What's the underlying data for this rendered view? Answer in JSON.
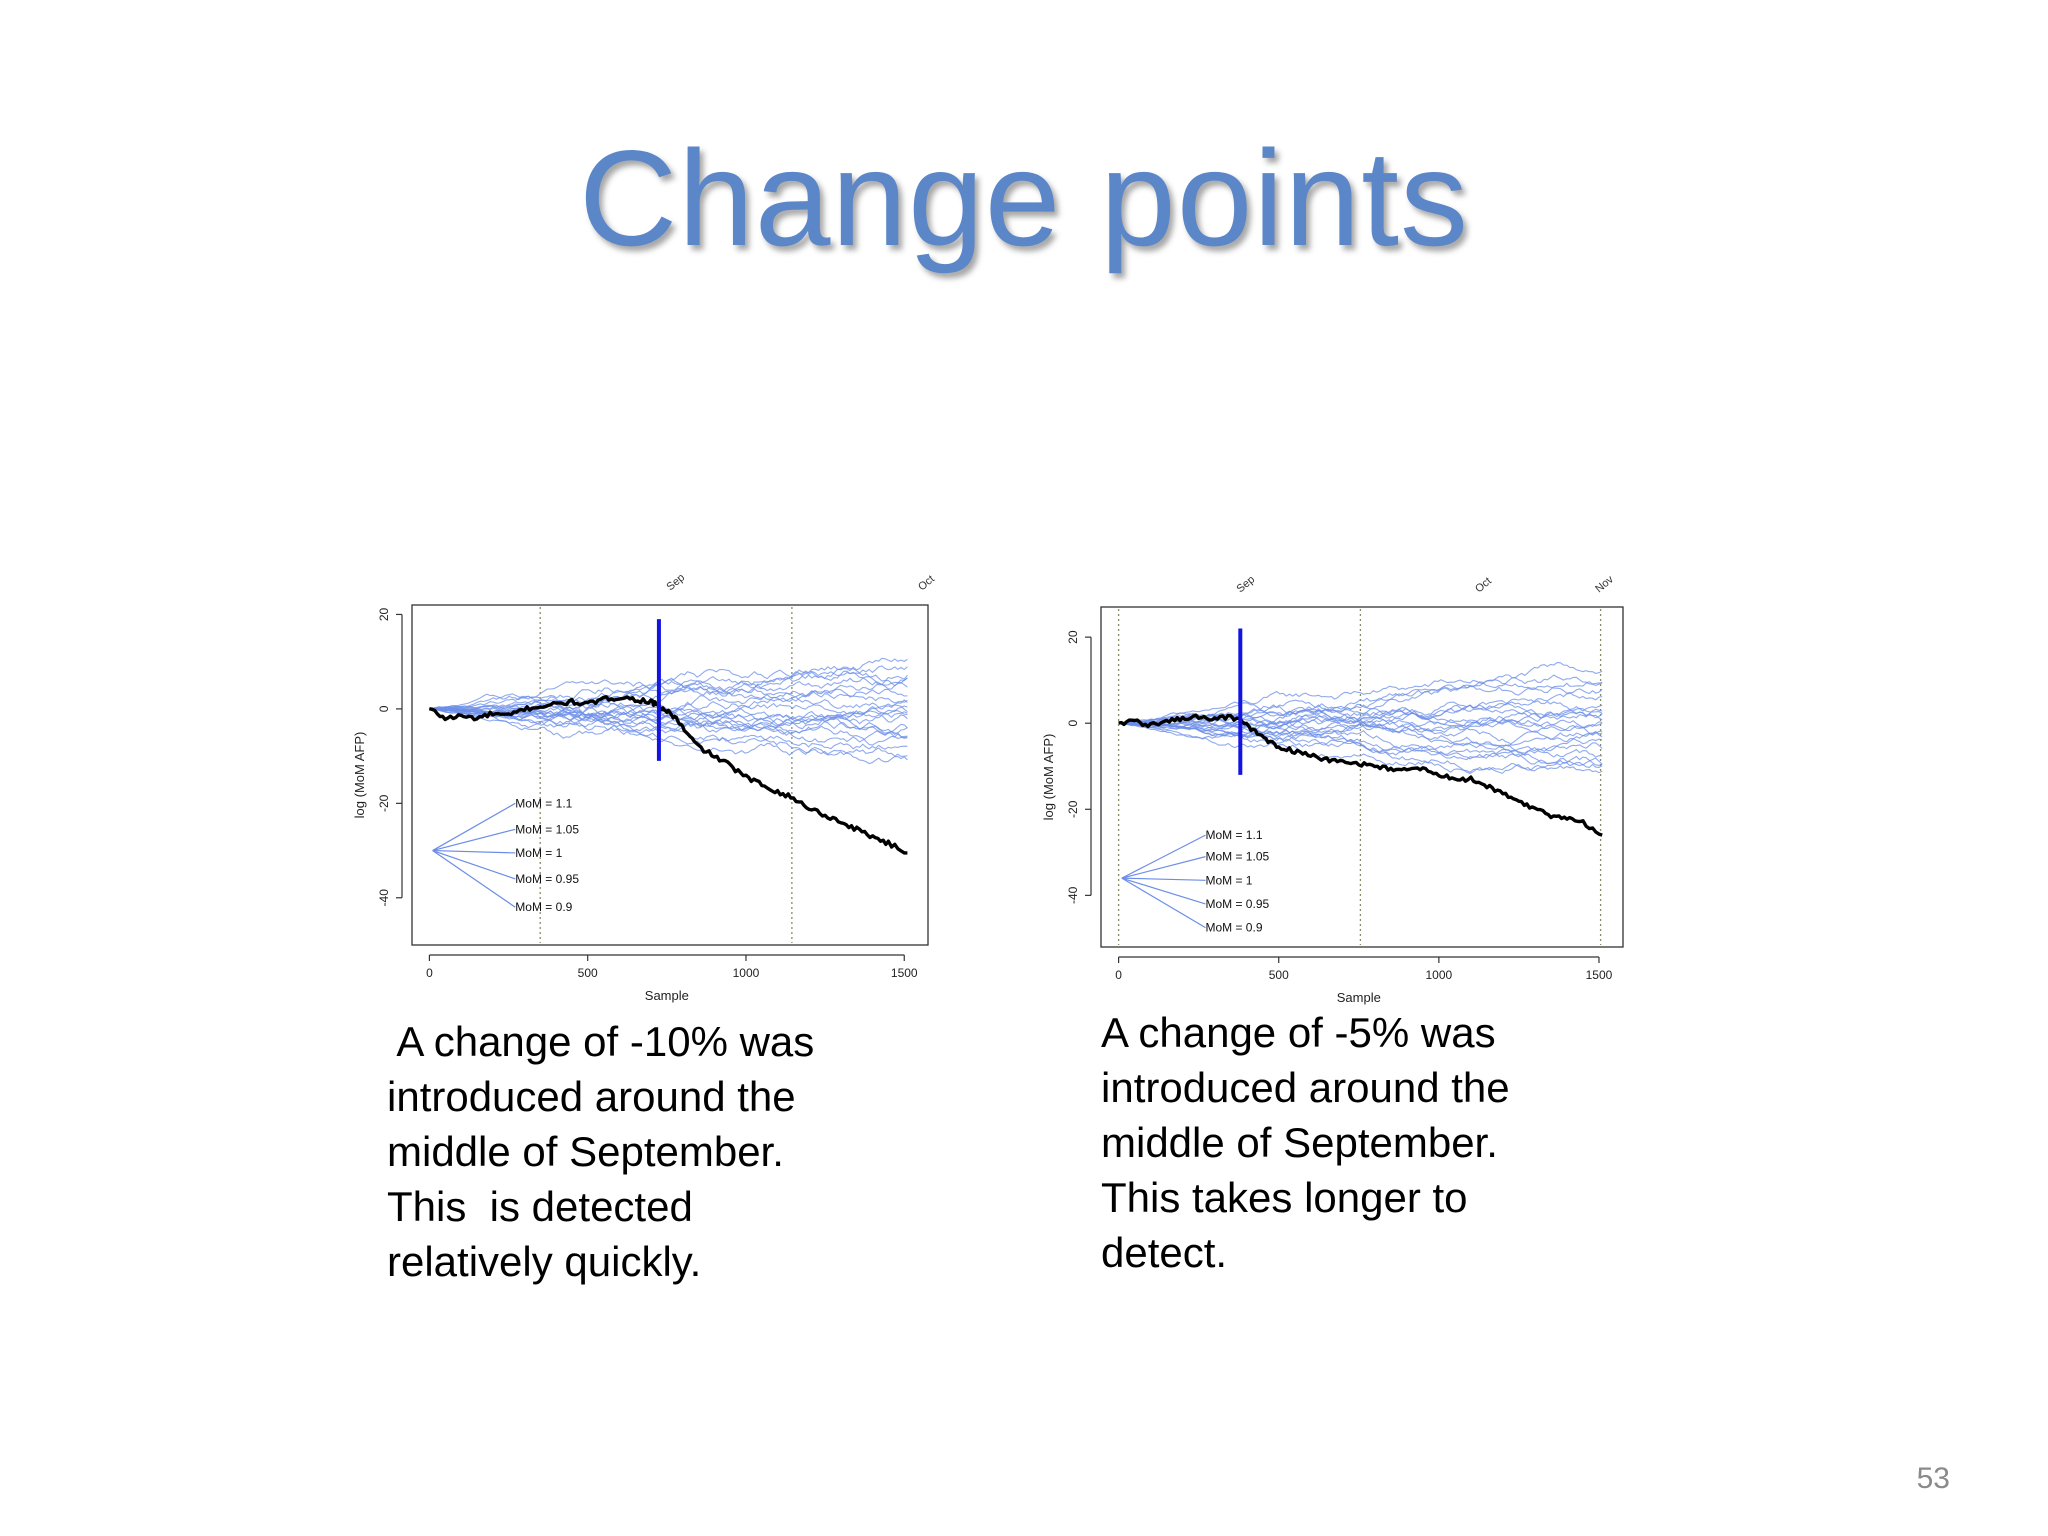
{
  "title": "Change points",
  "page_number": "53",
  "colors": {
    "title": "#5b86c8",
    "simulations": "#6b8de8",
    "observed": "#000000",
    "change_marker": "#1414e0",
    "month_marker": "#8a8a6a"
  },
  "captions": [
    " A change of -10% was\nintroduced around the\nmiddle of September.\nThis  is detected\nrelatively quickly.",
    "A change of -5% was\nintroduced around the\nmiddle of September.\nThis takes longer to\ndetect."
  ],
  "chart_data": [
    {
      "type": "line",
      "xlabel": "Sample",
      "ylabel": "log (MoM AFP)",
      "xlim": [
        -55,
        1575
      ],
      "ylim": [
        -50,
        22
      ],
      "xticks": [
        0,
        500,
        1000,
        1500
      ],
      "xtick_labels": [
        "0",
        "500",
        "1000",
        "1500"
      ],
      "yticks": [
        20,
        0,
        -20,
        -40
      ],
      "ytick_labels": [
        "20",
        "0",
        "-20",
        "-40"
      ],
      "grid": false,
      "month_markers": [
        {
          "label": "Sep",
          "x": 350
        },
        {
          "label": "Oct",
          "x": 1145
        }
      ],
      "change_marker": {
        "x": 725,
        "y_from": 19,
        "y_to": -11
      },
      "fan": {
        "origin": [
          10,
          -30
        ],
        "labels": [
          "MoM = 1.1",
          "MoM = 1.05",
          "MoM = 1",
          "MoM = 0.95",
          "MoM = 0.9"
        ],
        "label_y": [
          -20,
          -25.5,
          -30.5,
          -36,
          -42
        ],
        "label_x": 265
      },
      "simulation_series": {
        "count": 22,
        "x_end": 1510,
        "end_values": [
          10,
          8,
          6,
          5,
          4,
          3.5,
          2,
          1,
          0,
          -1,
          -2,
          -3,
          -3.5,
          -4,
          -5,
          -6,
          -7,
          -8,
          -9.5,
          -11,
          9,
          5.5
        ],
        "label": ""
      },
      "observed_series": {
        "x": [
          0,
          50,
          100,
          150,
          200,
          250,
          300,
          350,
          400,
          450,
          500,
          550,
          600,
          650,
          700,
          725,
          750,
          780,
          810,
          850,
          900,
          950,
          1000,
          1050,
          1100,
          1150,
          1200,
          1250,
          1300,
          1350,
          1400,
          1450,
          1510
        ],
        "y": [
          0,
          -2,
          -1.5,
          -2,
          -1,
          -1.5,
          0,
          0.5,
          1,
          1.5,
          1,
          2,
          2.5,
          2,
          1.5,
          0.5,
          -0.5,
          -2,
          -5,
          -8,
          -10,
          -12,
          -14.5,
          -16,
          -17.5,
          -19,
          -21,
          -22.5,
          -24,
          -25.5,
          -27,
          -28.5,
          -30.5
        ]
      }
    },
    {
      "type": "line",
      "xlabel": "Sample",
      "ylabel": "log (MoM AFP)",
      "xlim": [
        -55,
        1575
      ],
      "ylim": [
        -52,
        27
      ],
      "xticks": [
        0,
        500,
        1000,
        1500
      ],
      "xtick_labels": [
        "0",
        "500",
        "1000",
        "1500"
      ],
      "yticks": [
        20,
        0,
        -20,
        -40
      ],
      "ytick_labels": [
        "20",
        "0",
        "-20",
        "-40"
      ],
      "grid": false,
      "month_markers": [
        {
          "label": "Sep",
          "x": 0
        },
        {
          "label": "Oct",
          "x": 755
        },
        {
          "label": "Nov",
          "x": 1505
        }
      ],
      "month_label_x": [
        380,
        1125,
        1500
      ],
      "change_marker": {
        "x": 380,
        "y_from": 22,
        "y_to": -12
      },
      "fan": {
        "origin": [
          10,
          -36
        ],
        "labels": [
          "MoM = 1.1",
          "MoM = 1.05",
          "MoM = 1",
          "MoM = 0.95",
          "MoM = 0.9"
        ],
        "label_y": [
          -26,
          -31,
          -36.5,
          -42,
          -47.5
        ],
        "label_x": 265
      },
      "simulation_series": {
        "count": 22,
        "x_end": 1510,
        "end_values": [
          12,
          10,
          8,
          6.5,
          5,
          4,
          3,
          2,
          1,
          0,
          -1,
          -2,
          -3,
          -4,
          -5,
          -6,
          -7,
          -8,
          -9,
          -10,
          -11,
          7
        ],
        "label": ""
      },
      "observed_series": {
        "x": [
          0,
          50,
          100,
          150,
          200,
          250,
          300,
          350,
          380,
          420,
          460,
          500,
          550,
          600,
          650,
          700,
          750,
          800,
          850,
          900,
          950,
          1000,
          1050,
          1100,
          1150,
          1200,
          1250,
          1300,
          1350,
          1400,
          1450,
          1510
        ],
        "y": [
          0,
          0.5,
          -0.5,
          0.5,
          1,
          1.5,
          1,
          1.5,
          0.5,
          -1.5,
          -4,
          -5.5,
          -6.5,
          -7.5,
          -8.5,
          -9,
          -9.5,
          -10,
          -10.5,
          -11,
          -10.5,
          -12,
          -13,
          -13,
          -14.5,
          -16.5,
          -18,
          -20,
          -21.5,
          -22,
          -23,
          -26
        ]
      }
    }
  ]
}
